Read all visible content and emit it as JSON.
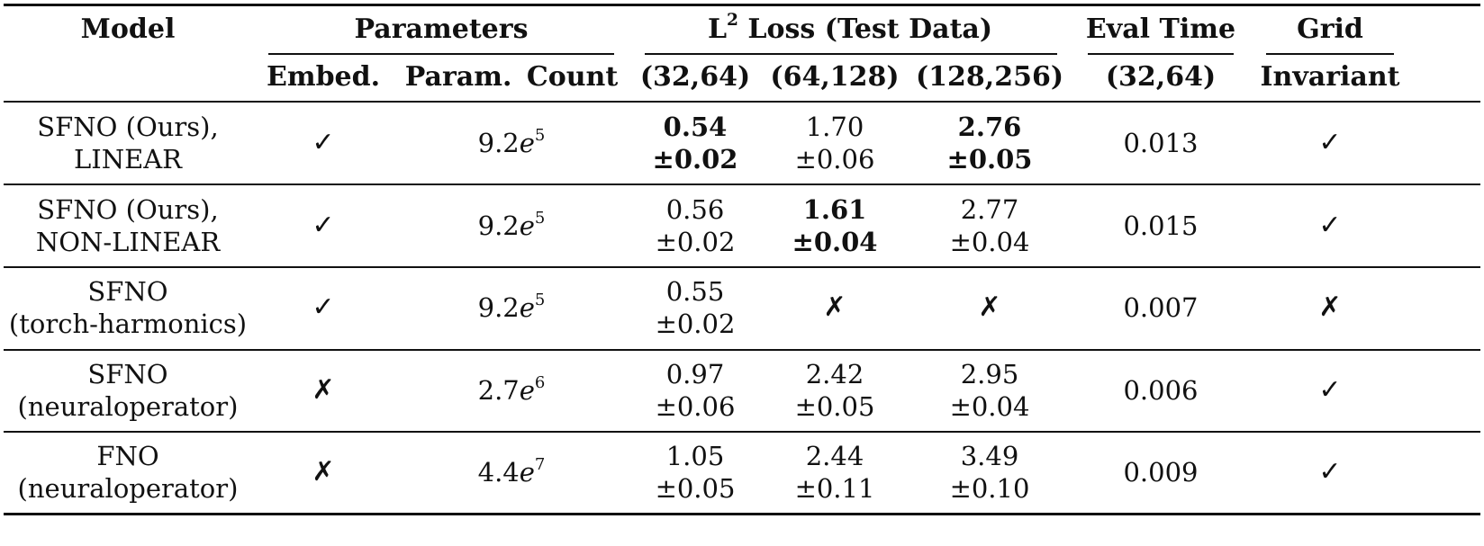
{
  "headers": {
    "model": "Model",
    "parameters": "Parameters",
    "loss_base": "L",
    "loss_sup": "2",
    "loss_rest": " Loss (Test Data)",
    "eval_time": "Eval Time",
    "grid": "Grid",
    "embed": "Embed.",
    "param_count": "Param. Count",
    "res_32_64": "(32,64)",
    "res_64_128": "(64,128)",
    "res_128_256": "(128,256)",
    "eval_res": "(32,64)",
    "invariant": "Invariant"
  },
  "symbols": {
    "check": "✓",
    "cross": "✗"
  },
  "rows": [
    {
      "model_line1": "SFNO (Ours),",
      "model_line2": "LINEAR",
      "embed": "check",
      "param_mantissa": "9.2",
      "param_base": "e",
      "param_exp": "5",
      "loss_32_64": {
        "mean": "0.54",
        "std": "±0.02",
        "bold": true
      },
      "loss_64_128": {
        "mean": "1.70",
        "std": "±0.06",
        "bold": false
      },
      "loss_128_256": {
        "mean": "2.76",
        "std": "±0.05",
        "bold": true
      },
      "eval_time": "0.013",
      "grid_invariant": "check"
    },
    {
      "model_line1": "SFNO (Ours),",
      "model_line2": "NON-LINEAR",
      "embed": "check",
      "param_mantissa": "9.2",
      "param_base": "e",
      "param_exp": "5",
      "loss_32_64": {
        "mean": "0.56",
        "std": "±0.02",
        "bold": false
      },
      "loss_64_128": {
        "mean": "1.61",
        "std": "±0.04",
        "bold": true
      },
      "loss_128_256": {
        "mean": "2.77",
        "std": "±0.04",
        "bold": false
      },
      "eval_time": "0.015",
      "grid_invariant": "check"
    },
    {
      "model_line1": "SFNO",
      "model_line2": "(torch-harmonics)",
      "embed": "check",
      "param_mantissa": "9.2",
      "param_base": "e",
      "param_exp": "5",
      "loss_32_64": {
        "mean": "0.55",
        "std": "±0.02",
        "bold": false
      },
      "loss_64_128": {
        "mark": "cross"
      },
      "loss_128_256": {
        "mark": "cross"
      },
      "eval_time": "0.007",
      "grid_invariant": "cross"
    },
    {
      "model_line1": "SFNO",
      "model_line2": "(neuraloperator)",
      "embed": "cross",
      "param_mantissa": "2.7",
      "param_base": "e",
      "param_exp": "6",
      "loss_32_64": {
        "mean": "0.97",
        "std": "±0.06",
        "bold": false
      },
      "loss_64_128": {
        "mean": "2.42",
        "std": "±0.05",
        "bold": false
      },
      "loss_128_256": {
        "mean": "2.95",
        "std": "±0.04",
        "bold": false
      },
      "eval_time": "0.006",
      "grid_invariant": "check"
    },
    {
      "model_line1": "FNO",
      "model_line2": "(neuraloperator)",
      "embed": "cross",
      "param_mantissa": "4.4",
      "param_base": "e",
      "param_exp": "7",
      "loss_32_64": {
        "mean": "1.05",
        "std": "±0.05",
        "bold": false
      },
      "loss_64_128": {
        "mean": "2.44",
        "std": "±0.11",
        "bold": false
      },
      "loss_128_256": {
        "mean": "3.49",
        "std": "±0.10",
        "bold": false
      },
      "eval_time": "0.009",
      "grid_invariant": "check"
    }
  ]
}
